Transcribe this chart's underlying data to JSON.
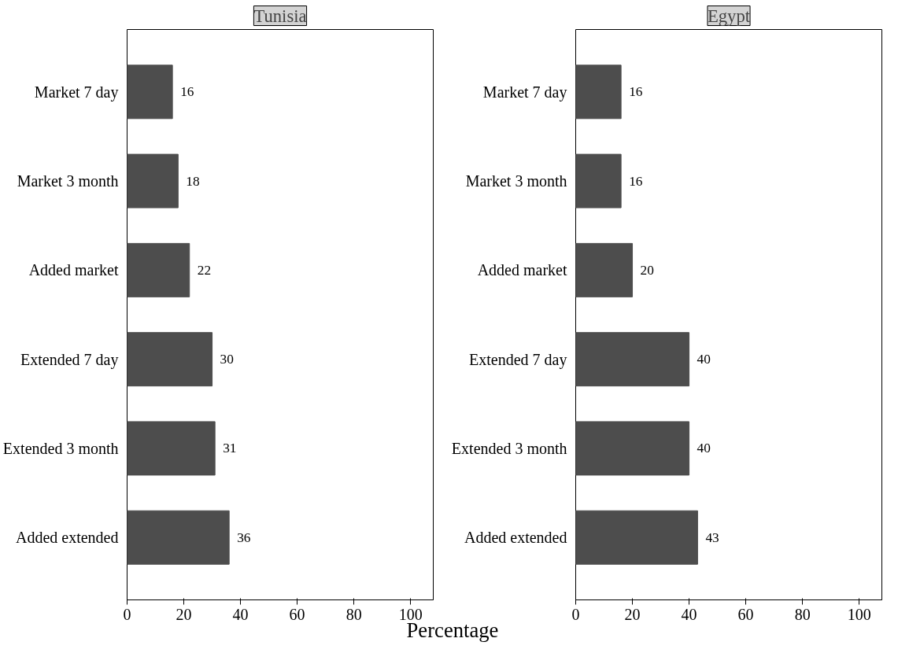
{
  "chart_data": [
    {
      "type": "bar",
      "title": "Tunisia",
      "orientation": "horizontal",
      "xlabel": "Percentage",
      "categories": [
        "Market 7 day",
        "Market 3 month",
        "Added market",
        "Extended 7 day",
        "Extended 3 month",
        "Added extended"
      ],
      "values": [
        16,
        18,
        22,
        30,
        31,
        36
      ],
      "color": "#4d4d4d",
      "xlim": [
        0,
        108
      ],
      "xticks": [
        0,
        20,
        40,
        60,
        80,
        100
      ],
      "data_labels": true,
      "grid": false,
      "legend": false
    },
    {
      "type": "bar",
      "title": "Egypt",
      "orientation": "horizontal",
      "categories": [
        "Market 7 day",
        "Market 3 month",
        "Added market",
        "Extended 7 day",
        "Extended 3 month",
        "Added extended"
      ],
      "values": [
        16,
        16,
        20,
        40,
        40,
        43
      ],
      "color": "#4d4d4d",
      "xlim": [
        0,
        108
      ],
      "xticks": [
        0,
        20,
        40,
        60,
        80,
        100
      ],
      "data_labels": true,
      "grid": false,
      "legend": false
    }
  ]
}
